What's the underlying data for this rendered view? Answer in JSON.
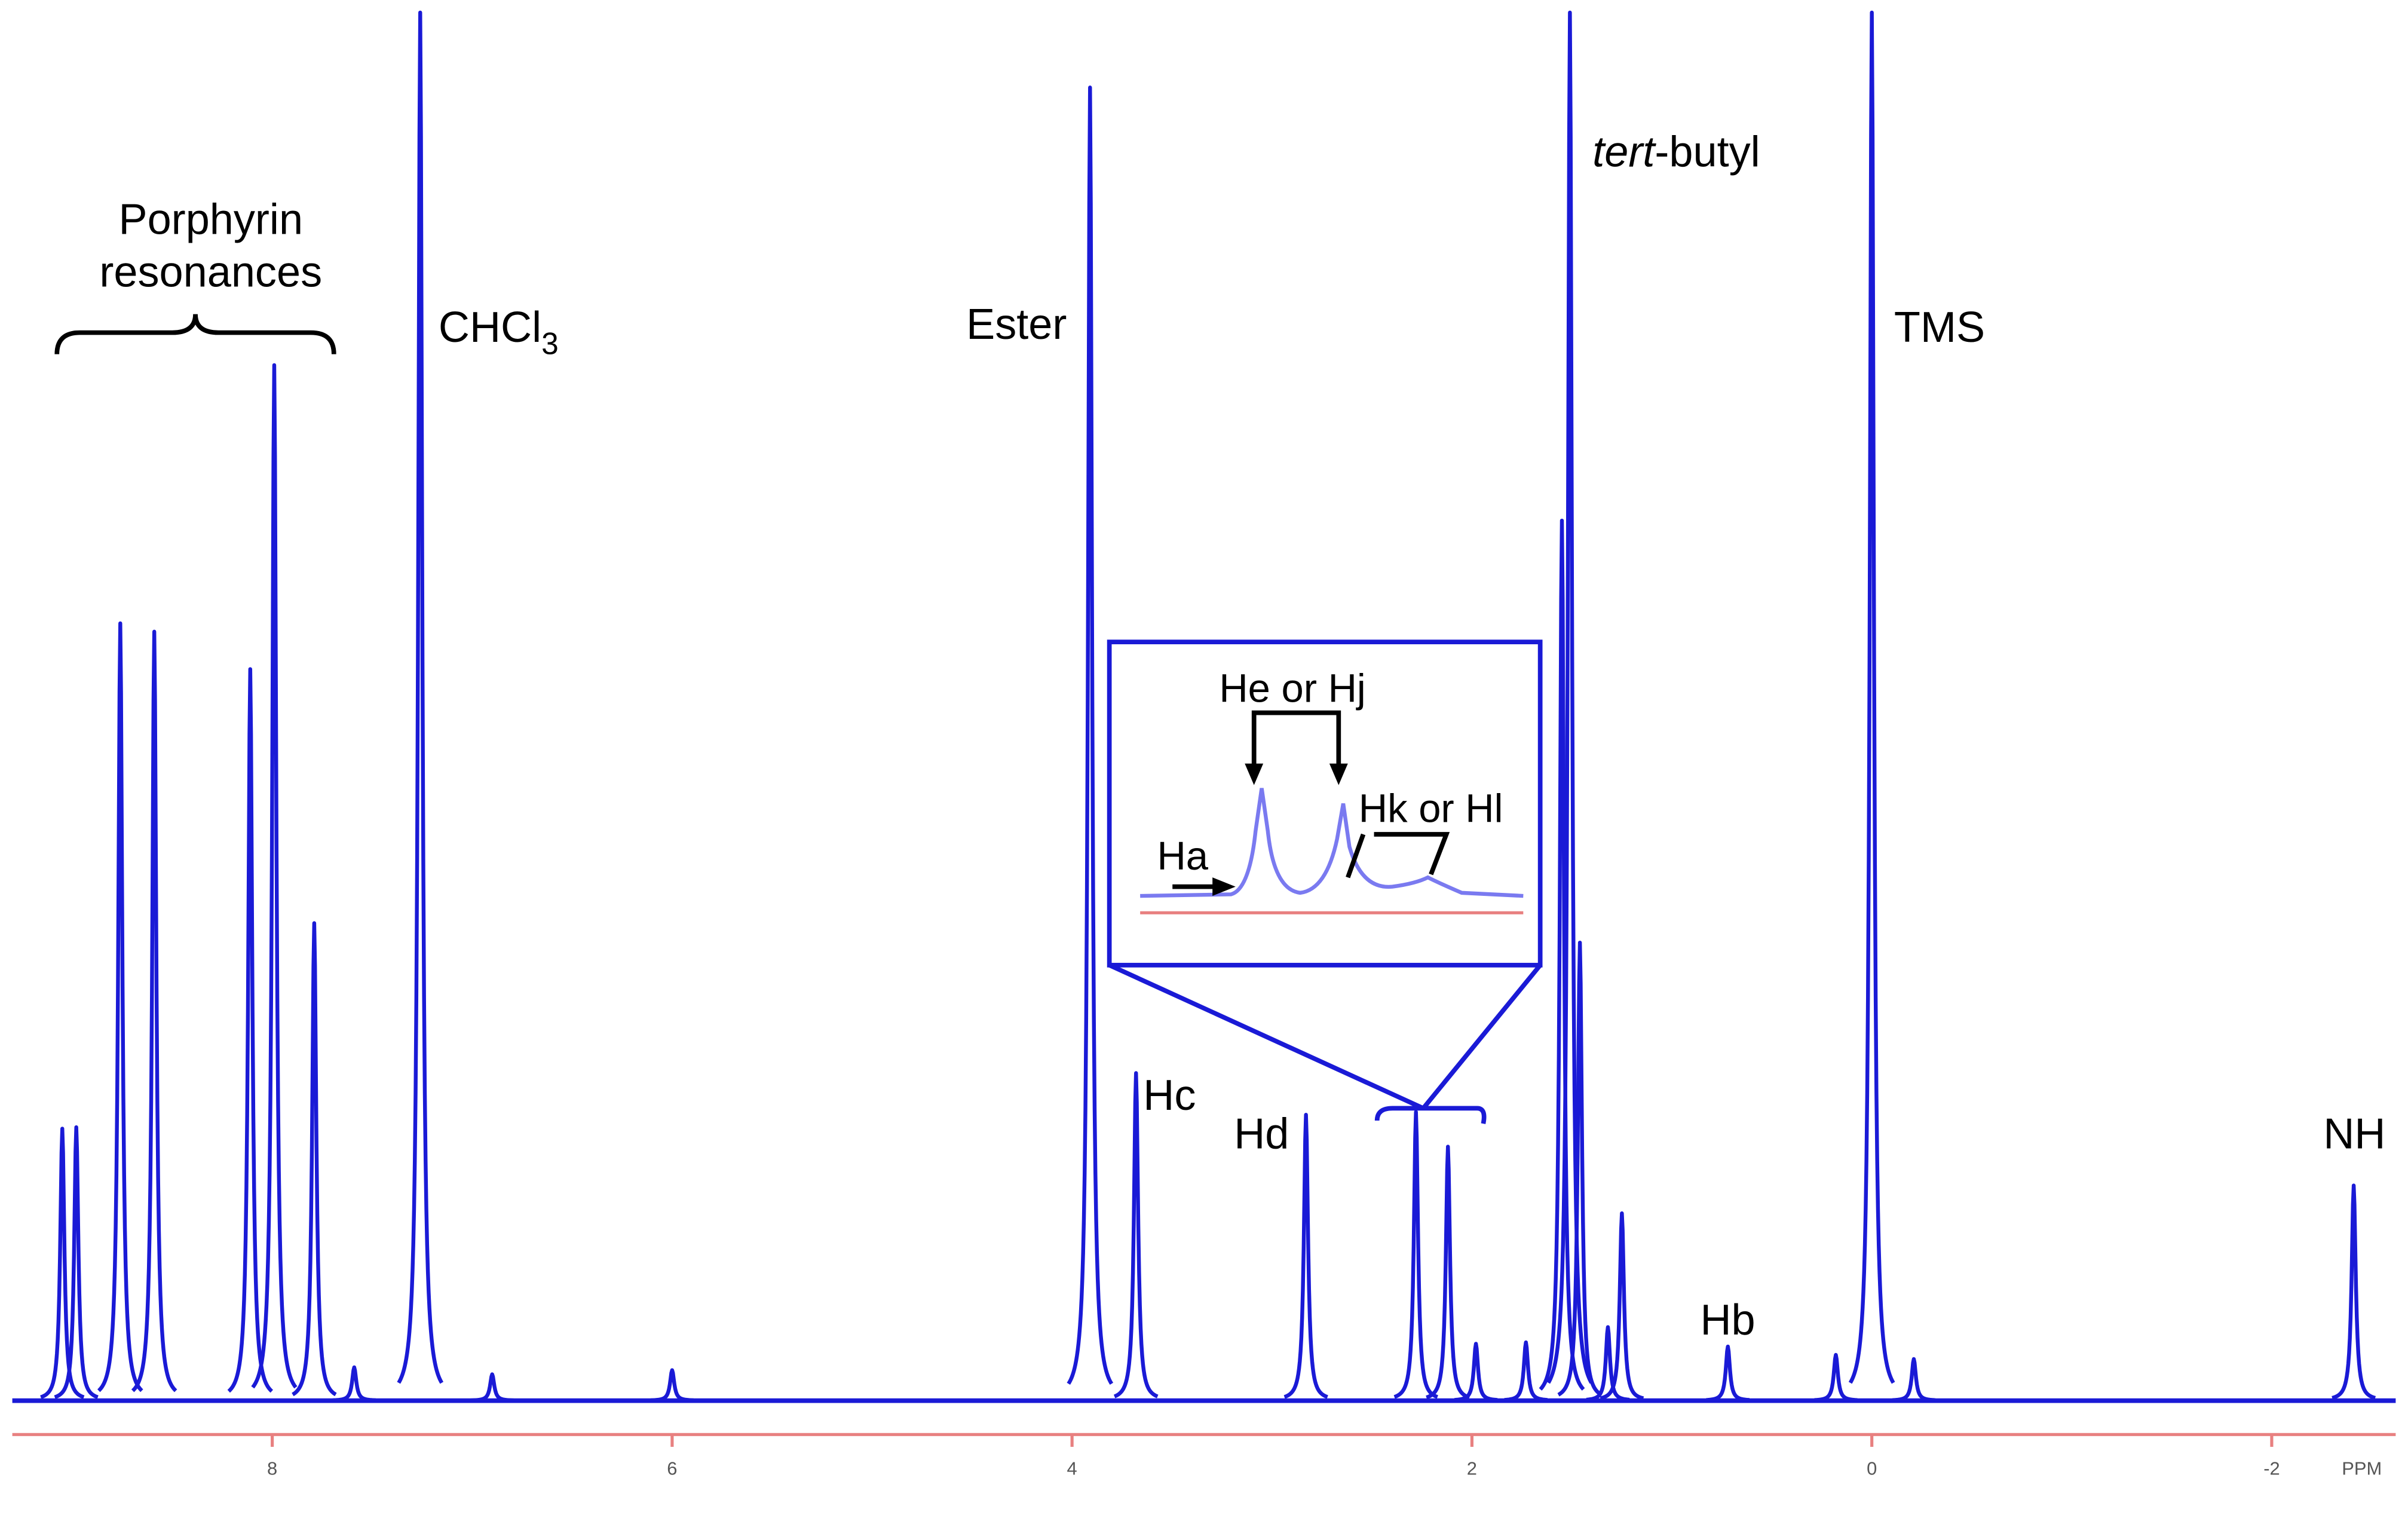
{
  "chart_data": {
    "type": "spectrum",
    "color": "#1a1ad6",
    "x_label": "PPM",
    "xlim": [
      9.3,
      -2.62
    ],
    "xticks": [
      8,
      6,
      4,
      2,
      0,
      -2
    ],
    "ylim": [
      0,
      100
    ],
    "x": [
      9.05,
      8.98,
      8.76,
      8.59,
      8.11,
      7.99,
      7.79,
      7.59,
      7.26,
      6.9,
      6.0,
      3.91,
      3.68,
      2.83,
      2.28,
      2.12,
      1.98,
      1.73,
      1.55,
      1.51,
      1.46,
      1.32,
      1.25,
      0.72,
      0.18,
      0,
      -0.21,
      -2.41
    ],
    "values": [
      19.6,
      19.7,
      56,
      55.4,
      52.7,
      74.6,
      34.4,
      2.4,
      100,
      1.9,
      2.2,
      94.6,
      23.6,
      20.6,
      20.8,
      18.3,
      4.1,
      4.2,
      63.4,
      100,
      33,
      5.3,
      13.5,
      3.9,
      3.3,
      100,
      3,
      15.5
    ],
    "labels": {
      "porphyrin": [
        "Porphyrin",
        "resonances"
      ],
      "chcl3": [
        "CHCl",
        "3"
      ],
      "ester": "Ester",
      "tbutyl": [
        "tert",
        "-butyl"
      ],
      "tms": "TMS",
      "hc": "Hc",
      "hd": "Hd",
      "hb": "Hb",
      "nh": "NH"
    },
    "inset": {
      "he_hj": "He or Hj",
      "hk_hl": "Hk or Hl",
      "ha": "Ha"
    }
  }
}
